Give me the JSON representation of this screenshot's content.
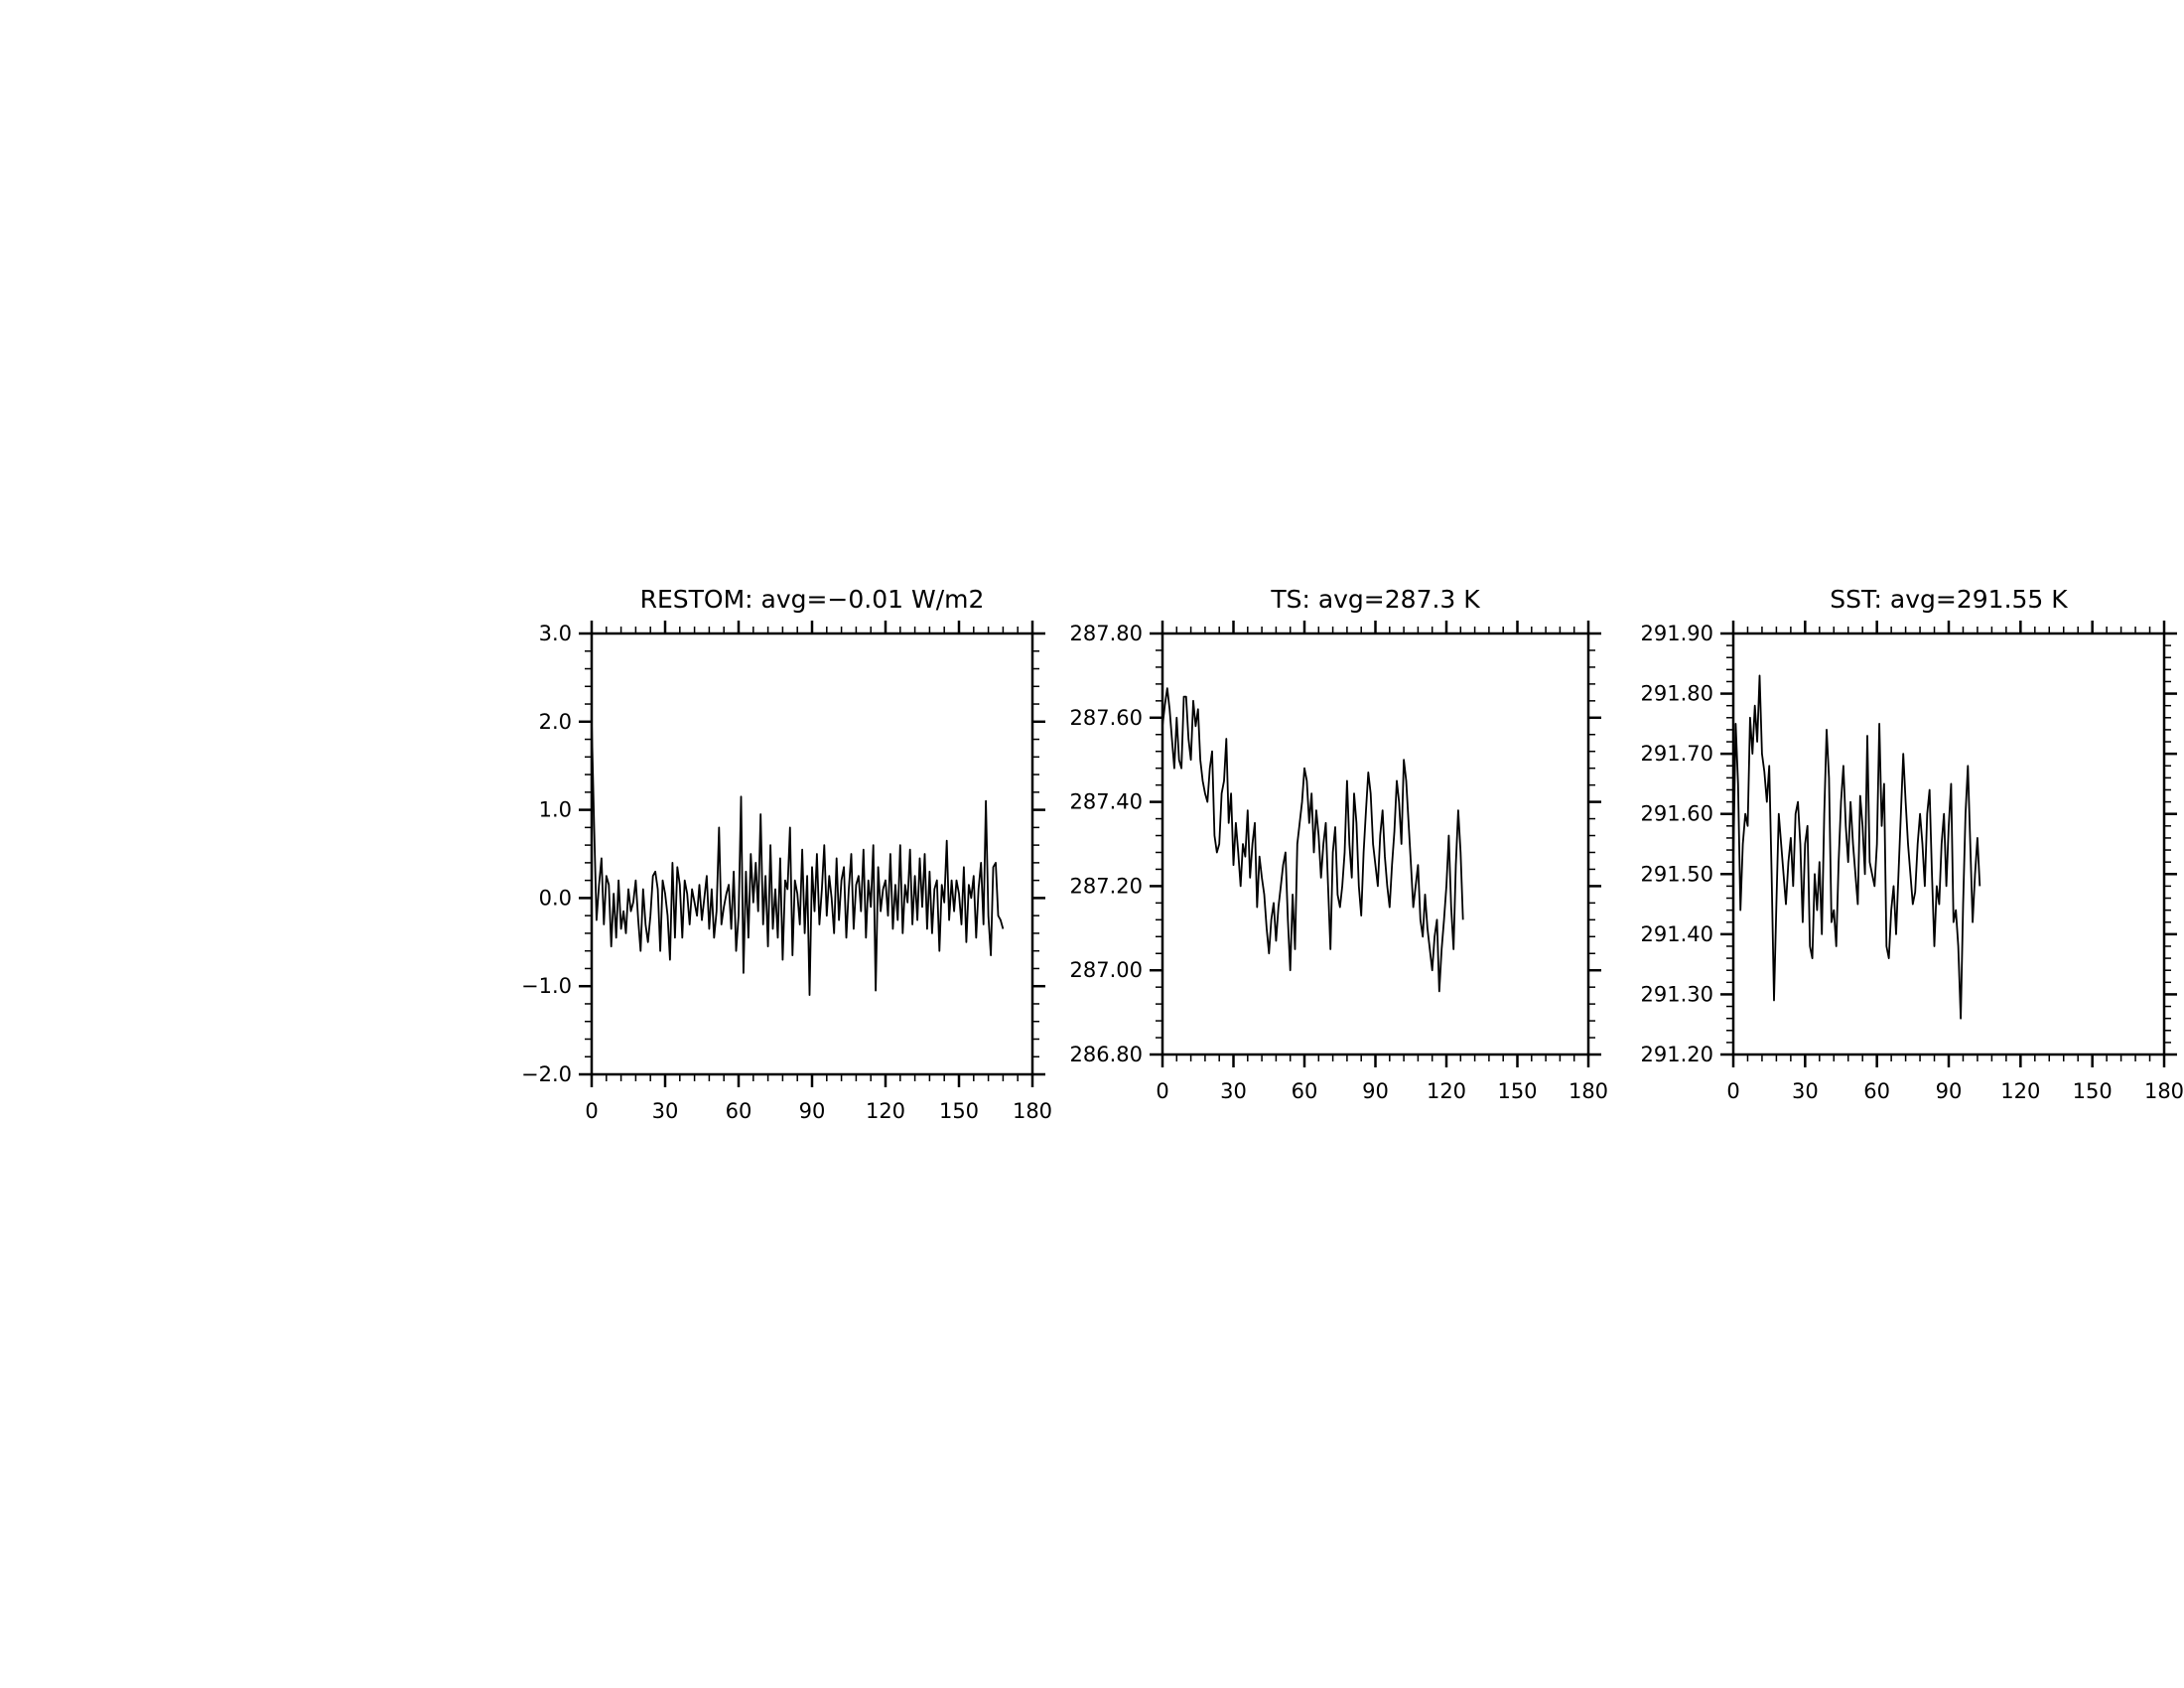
{
  "chart_data": [
    {
      "type": "line",
      "title": "RESTOM: avg=−0.01 W/m2",
      "xlim": [
        0,
        180
      ],
      "ylim": [
        -2.0,
        3.0
      ],
      "xticks": [
        0,
        30,
        60,
        90,
        120,
        150,
        180
      ],
      "xtick_labels": [
        "0",
        "30",
        "60",
        "90",
        "120",
        "150",
        "180"
      ],
      "yticks": [
        -2.0,
        -1.0,
        0.0,
        1.0,
        2.0,
        3.0
      ],
      "ytick_labels": [
        "−2.0",
        "−1.0",
        "0.0",
        "1.0",
        "2.0",
        "3.0"
      ],
      "x_minor_step": 6,
      "y_minor_step": 0.2,
      "grid": false,
      "color": "#000000",
      "x_start": 0,
      "values": [
        2.0,
        0.8,
        -0.25,
        0.15,
        0.45,
        -0.3,
        0.25,
        0.15,
        -0.55,
        0.05,
        -0.45,
        0.2,
        -0.35,
        -0.15,
        -0.4,
        0.1,
        -0.15,
        -0.05,
        0.2,
        -0.25,
        -0.6,
        0.1,
        -0.3,
        -0.5,
        -0.2,
        0.25,
        0.3,
        0.1,
        -0.6,
        0.2,
        0.05,
        -0.2,
        -0.7,
        0.4,
        -0.45,
        0.35,
        0.15,
        -0.45,
        0.2,
        0.05,
        -0.3,
        0.1,
        -0.05,
        -0.2,
        0.15,
        -0.25,
        0.0,
        0.25,
        -0.35,
        0.1,
        -0.45,
        -0.15,
        0.8,
        -0.3,
        -0.1,
        0.05,
        0.15,
        -0.35,
        0.3,
        -0.6,
        -0.2,
        1.15,
        -0.85,
        0.3,
        -0.45,
        0.5,
        -0.05,
        0.4,
        -0.15,
        0.95,
        -0.3,
        0.25,
        -0.55,
        0.6,
        -0.35,
        0.1,
        -0.45,
        0.45,
        -0.7,
        0.2,
        0.1,
        0.8,
        -0.65,
        0.2,
        0.05,
        -0.3,
        0.55,
        -0.4,
        0.25,
        -1.1,
        0.35,
        -0.15,
        0.5,
        -0.3,
        0.1,
        0.6,
        -0.2,
        0.25,
        0.0,
        -0.4,
        0.45,
        -0.25,
        0.2,
        0.35,
        -0.45,
        0.1,
        0.5,
        -0.35,
        0.15,
        0.25,
        -0.15,
        0.55,
        -0.45,
        0.2,
        -0.1,
        0.6,
        -1.05,
        0.35,
        -0.15,
        0.1,
        0.2,
        -0.2,
        0.5,
        -0.35,
        0.15,
        -0.25,
        0.6,
        -0.4,
        0.15,
        -0.05,
        0.55,
        -0.3,
        0.25,
        -0.25,
        0.45,
        -0.1,
        0.5,
        -0.35,
        0.3,
        -0.4,
        0.1,
        0.2,
        -0.6,
        0.15,
        -0.05,
        0.65,
        -0.25,
        0.2,
        -0.15,
        0.2,
        0.05,
        -0.3,
        0.35,
        -0.5,
        0.15,
        0.0,
        0.25,
        -0.45,
        0.1,
        0.4,
        -0.3,
        1.1,
        -0.2,
        -0.65,
        0.35,
        0.4,
        -0.2,
        -0.25,
        -0.35
      ]
    },
    {
      "type": "line",
      "title": "TS: avg=287.3 K",
      "xlim": [
        0,
        180
      ],
      "ylim": [
        286.8,
        287.8
      ],
      "xticks": [
        0,
        30,
        60,
        90,
        120,
        150,
        180
      ],
      "xtick_labels": [
        "0",
        "30",
        "60",
        "90",
        "120",
        "150",
        "180"
      ],
      "yticks": [
        286.8,
        287.0,
        287.2,
        287.4,
        287.6,
        287.8
      ],
      "ytick_labels": [
        "286.80",
        "287.00",
        "287.20",
        "287.40",
        "287.60",
        "287.80"
      ],
      "x_minor_step": 6,
      "y_minor_step": 0.04,
      "grid": false,
      "color": "#000000",
      "x_start": 0,
      "values": [
        287.58,
        287.63,
        287.67,
        287.62,
        287.55,
        287.48,
        287.6,
        287.5,
        287.48,
        287.65,
        287.65,
        287.55,
        287.5,
        287.64,
        287.58,
        287.62,
        287.5,
        287.45,
        287.42,
        287.4,
        287.48,
        287.52,
        287.32,
        287.28,
        287.3,
        287.42,
        287.45,
        287.55,
        287.35,
        287.42,
        287.25,
        287.35,
        287.28,
        287.2,
        287.3,
        287.27,
        287.38,
        287.22,
        287.3,
        287.35,
        287.15,
        287.27,
        287.22,
        287.18,
        287.1,
        287.04,
        287.12,
        287.16,
        287.07,
        287.15,
        287.2,
        287.25,
        287.28,
        287.12,
        287.0,
        287.18,
        287.05,
        287.3,
        287.35,
        287.4,
        287.48,
        287.45,
        287.35,
        287.42,
        287.28,
        287.38,
        287.32,
        287.22,
        287.3,
        287.35,
        287.2,
        287.05,
        287.28,
        287.34,
        287.18,
        287.15,
        287.2,
        287.28,
        287.45,
        287.3,
        287.22,
        287.42,
        287.35,
        287.2,
        287.13,
        287.28,
        287.38,
        287.47,
        287.42,
        287.3,
        287.25,
        287.2,
        287.32,
        287.38,
        287.27,
        287.2,
        287.15,
        287.25,
        287.33,
        287.45,
        287.4,
        287.3,
        287.5,
        287.45,
        287.35,
        287.25,
        287.15,
        287.2,
        287.25,
        287.12,
        287.08,
        287.18,
        287.1,
        287.05,
        287.0,
        287.08,
        287.12,
        286.95,
        287.05,
        287.12,
        287.2,
        287.32,
        287.15,
        287.05,
        287.25,
        287.38,
        287.28,
        287.12
      ]
    },
    {
      "type": "line",
      "title": "SST: avg=291.55 K",
      "xlim": [
        0,
        180
      ],
      "ylim": [
        291.2,
        291.9
      ],
      "xticks": [
        0,
        30,
        60,
        90,
        120,
        150,
        180
      ],
      "xtick_labels": [
        "0",
        "30",
        "60",
        "90",
        "120",
        "150",
        "180"
      ],
      "yticks": [
        291.2,
        291.3,
        291.4,
        291.5,
        291.6,
        291.7,
        291.8,
        291.9
      ],
      "ytick_labels": [
        "291.20",
        "291.30",
        "291.40",
        "291.50",
        "291.60",
        "291.70",
        "291.80",
        "291.90"
      ],
      "x_minor_step": 6,
      "y_minor_step": 0.02,
      "grid": false,
      "color": "#000000",
      "x_start": 0,
      "values": [
        291.52,
        291.75,
        291.65,
        291.44,
        291.55,
        291.6,
        291.58,
        291.76,
        291.7,
        291.78,
        291.72,
        291.83,
        291.7,
        291.67,
        291.62,
        291.68,
        291.5,
        291.29,
        291.45,
        291.6,
        291.55,
        291.5,
        291.45,
        291.52,
        291.56,
        291.48,
        291.6,
        291.62,
        291.55,
        291.42,
        291.55,
        291.58,
        291.38,
        291.36,
        291.5,
        291.44,
        291.52,
        291.4,
        291.6,
        291.74,
        291.66,
        291.42,
        291.44,
        291.38,
        291.52,
        291.62,
        291.68,
        291.58,
        291.52,
        291.62,
        291.55,
        291.5,
        291.45,
        291.63,
        291.58,
        291.5,
        291.73,
        291.52,
        291.5,
        291.48,
        291.55,
        291.75,
        291.58,
        291.65,
        291.38,
        291.36,
        291.44,
        291.48,
        291.4,
        291.5,
        291.6,
        291.7,
        291.62,
        291.55,
        291.5,
        291.45,
        291.47,
        291.55,
        291.6,
        291.55,
        291.48,
        291.6,
        291.64,
        291.5,
        291.38,
        291.48,
        291.45,
        291.55,
        291.6,
        291.48,
        291.58,
        291.65,
        291.42,
        291.44,
        291.38,
        291.26,
        291.45,
        291.6,
        291.68,
        291.55,
        291.42,
        291.5,
        291.56,
        291.48
      ]
    }
  ]
}
